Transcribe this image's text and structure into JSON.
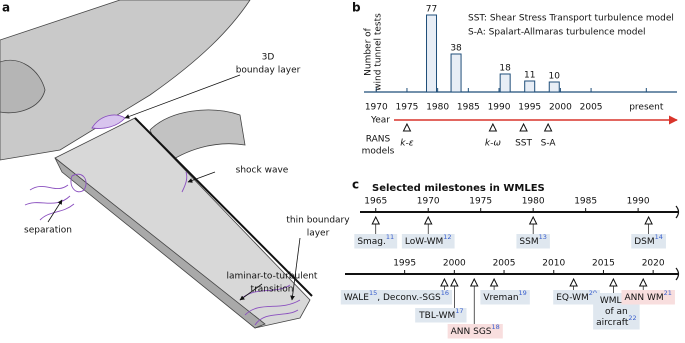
{
  "panel_labels": [
    "a",
    "b",
    "c"
  ],
  "panel_a": {
    "annotations": [
      {
        "lines": [
          "3D",
          "bounday layer"
        ]
      },
      {
        "lines": [
          "shock wave"
        ]
      },
      {
        "lines": [
          "separation"
        ]
      },
      {
        "lines": [
          "thin boundary",
          "layer"
        ]
      },
      {
        "lines": [
          "laminar-to-turbulent",
          "transition"
        ]
      }
    ]
  },
  "chart_data": {
    "type": "bar",
    "ylabel": [
      "Number of",
      "wind tunnel tests"
    ],
    "x": [
      1979,
      1983,
      1991,
      1995,
      1999
    ],
    "values": [
      77,
      38,
      18,
      11,
      10
    ],
    "color": "#e8eef6",
    "edge_color": "#1f4e79",
    "xlim": [
      1968,
      2019
    ],
    "ylim": [
      0,
      80
    ],
    "xticks": [
      1970,
      1975,
      1980,
      1985,
      1990,
      1995,
      2000,
      2005,
      {
        "value": 2014,
        "label": "present"
      }
    ],
    "notes": [
      "SST: Shear Stress Transport turbulence model",
      "S-A: Spalart-Allmaras turbulence model"
    ],
    "year_axis": {
      "label": "Year",
      "color": "#d9342b"
    },
    "rans": {
      "label": [
        "RANS",
        "models"
      ],
      "models": [
        {
          "name": "k-ε",
          "year": 1975
        },
        {
          "name": "k-ω",
          "year": 1989
        },
        {
          "name": "SST",
          "year": 1994
        },
        {
          "name": "S-A",
          "year": 1998
        }
      ]
    }
  },
  "panel_c": {
    "title": "Selected milestones in WMLES",
    "timelines": [
      {
        "xlim": [
          1963.5,
          1993.8
        ],
        "xticks": [
          1965,
          1970,
          1975,
          1980,
          1985,
          1990
        ],
        "milestones": [
          {
            "year": 1965,
            "color": "#dfe7ef",
            "lines": [
              [
                {
                  "text": "Smag.",
                  "ref": "11"
                }
              ]
            ]
          },
          {
            "year": 1970,
            "color": "#dfe7ef",
            "lines": [
              [
                {
                  "text": "LoW-WM",
                  "ref": "12"
                }
              ]
            ]
          },
          {
            "year": 1980,
            "color": "#dfe7ef",
            "lines": [
              [
                {
                  "text": "SSM",
                  "ref": "13"
                }
              ]
            ]
          },
          {
            "year": 1991,
            "color": "#dfe7ef",
            "lines": [
              [
                {
                  "text": "DSM",
                  "ref": "14"
                }
              ]
            ]
          }
        ]
      },
      {
        "xlim": [
          1989,
          2022.5
        ],
        "xticks": [
          1995,
          2000,
          2005,
          2010,
          2015,
          2020
        ],
        "milestones": [
          {
            "year": 1999,
            "color": "#dfe7ef",
            "lines": [
              [
                {
                  "text": "WALE",
                  "ref": "15"
                },
                {
                  "text": ", Deconv.-SGS",
                  "ref": "16"
                }
              ]
            ]
          },
          {
            "year": 2000,
            "color": "#dfe7ef",
            "lines": [
              [
                {
                  "text": "TBL-WM",
                  "ref": "17"
                }
              ]
            ]
          },
          {
            "year": 2002,
            "color": "#f8dede",
            "lines": [
              [
                {
                  "text": "ANN SGS",
                  "ref": "18"
                }
              ]
            ]
          },
          {
            "year": 2004,
            "color": "#dfe7ef",
            "lines": [
              [
                {
                  "text": "Vreman",
                  "ref": "19"
                }
              ]
            ]
          },
          {
            "year": 2012,
            "color": "#dfe7ef",
            "lines": [
              [
                {
                  "text": "EQ-WM",
                  "ref": "20"
                }
              ]
            ]
          },
          {
            "year": 2016,
            "color": "#dfe7ef",
            "lines": [
              [
                {
                  "text": "WMLES"
                }
              ],
              [
                {
                  "text": "of an"
                }
              ],
              [
                {
                  "text": "aircraft",
                  "ref": "22"
                }
              ]
            ]
          },
          {
            "year": 2019,
            "color": "#f8dede",
            "lines": [
              [
                {
                  "text": "ANN WM",
                  "ref": "21"
                }
              ]
            ]
          }
        ]
      }
    ]
  }
}
